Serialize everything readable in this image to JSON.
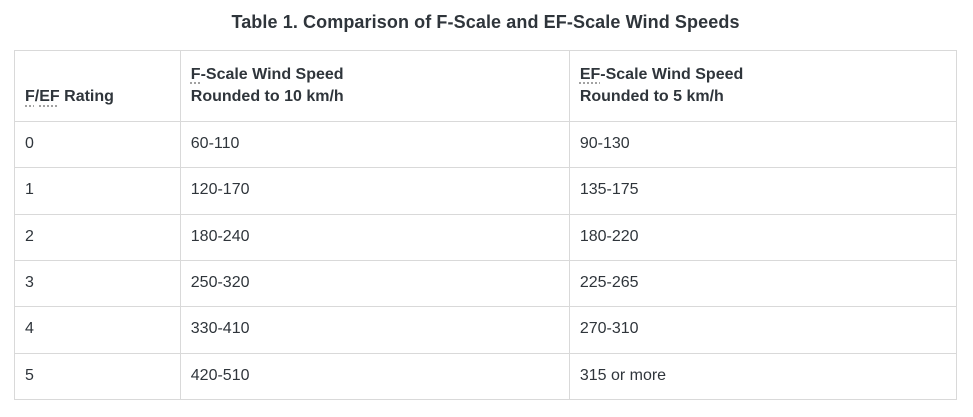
{
  "title": "Table 1. Comparison of F-Scale and EF-Scale Wind Speeds",
  "colors": {
    "text": "#2f353b",
    "border": "#d9d9d9",
    "background": "#ffffff"
  },
  "table": {
    "header": {
      "rating": {
        "abbr1": "F",
        "slash": "/",
        "abbr2": "EF",
        "rest": " Rating"
      },
      "fscale": {
        "abbr": "F",
        "rest": "-Scale Wind Speed",
        "line2": "Rounded to 10 km/h"
      },
      "efscale": {
        "abbr": "EF",
        "rest": "-Scale Wind Speed",
        "line2": "Rounded to 5 km/h"
      }
    },
    "rows": [
      {
        "rating": "0",
        "f": "60-110",
        "ef": "90-130"
      },
      {
        "rating": "1",
        "f": "120-170",
        "ef": "135-175"
      },
      {
        "rating": "2",
        "f": "180-240",
        "ef": "180-220"
      },
      {
        "rating": "3",
        "f": "250-320",
        "ef": "225-265"
      },
      {
        "rating": "4",
        "f": "330-410",
        "ef": "270-310"
      },
      {
        "rating": "5",
        "f": "420-510",
        "ef": "315 or more"
      }
    ]
  }
}
